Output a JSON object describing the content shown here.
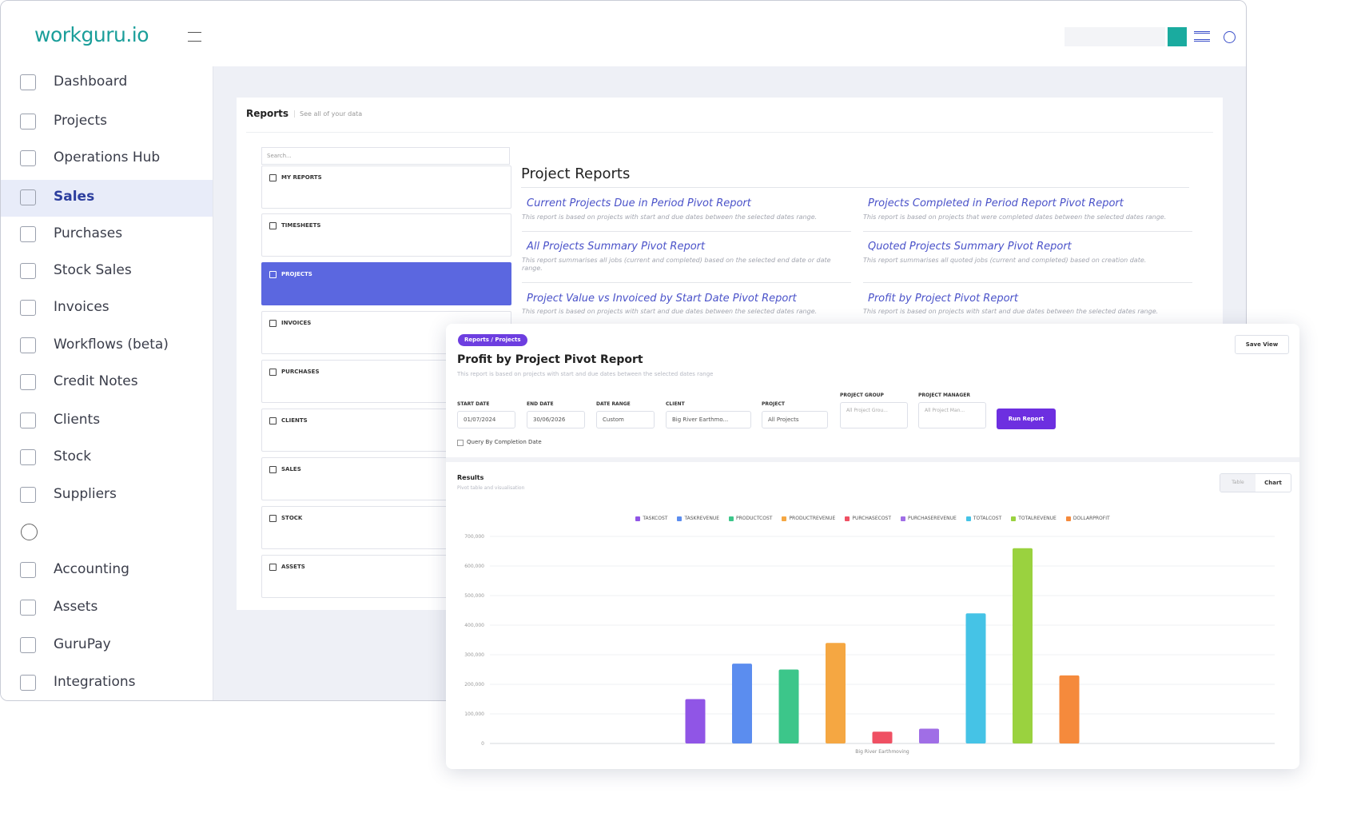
{
  "header": {
    "logo": "workguru.io"
  },
  "sidebar": {
    "items": [
      "Dashboard",
      "Projects",
      "Operations Hub",
      "Sales",
      "Purchases",
      "Stock Sales",
      "Invoices",
      "Workflows (beta)",
      "Credit Notes",
      "Clients",
      "Stock",
      "Suppliers",
      "Accounting",
      "Assets",
      "GuruPay",
      "Integrations"
    ]
  },
  "reports": {
    "title": "Reports",
    "subtitle": "See all of your data",
    "search_placeholder": "Search...",
    "categories": [
      "MY REPORTS",
      "TIMESHEETS",
      "PROJECTS",
      "INVOICES",
      "PURCHASES",
      "CLIENTS",
      "SALES",
      "STOCK",
      "ASSETS"
    ],
    "section_title": "Project Reports",
    "items": [
      {
        "title": "Current Projects Due in Period Pivot Report",
        "description": "This report is based on projects with start and due dates between the selected dates range."
      },
      {
        "title": "Projects Completed in Period Report Pivot Report",
        "description": "This report is based on projects that were completed dates between the selected dates range."
      },
      {
        "title": "All Projects Summary Pivot Report",
        "description": "This report summarises all jobs (current and completed) based on the selected end date or date range."
      },
      {
        "title": "Quoted Projects Summary Pivot Report",
        "description": "This report summarises all quoted jobs (current and completed) based on creation date."
      },
      {
        "title": "Project Value vs Invoiced by Start Date Pivot Report",
        "description": "This report is based on projects with start and due dates between the selected dates range."
      },
      {
        "title": "Profit by Project Pivot Report",
        "description": "This report is based on projects with start and due dates between the selected dates range."
      }
    ]
  },
  "report_view": {
    "breadcrumb": "Reports / Projects",
    "title": "Profit by Project Pivot Report",
    "description": "This report is based on projects with start and due dates between the selected dates range",
    "save_button": "Save View",
    "filters": [
      {
        "label": "START DATE",
        "value": "01/07/2024"
      },
      {
        "label": "END DATE",
        "value": "30/06/2026"
      },
      {
        "label": "DATE RANGE",
        "value": "Custom"
      },
      {
        "label": "CLIENT",
        "value": "Big River Earthmo..."
      },
      {
        "label": "PROJECT",
        "value": "All Projects"
      },
      {
        "label": "PROJECT GROUP",
        "value": "All Project Grou..."
      },
      {
        "label": "PROJECT MANAGER",
        "value": "All Project Man..."
      }
    ],
    "run_button": "Run Report",
    "checkbox_label": "Query By Completion Date",
    "results_title": "Results",
    "results_subtitle": "Pivot table and visualisation",
    "view_toggle": [
      "Table",
      "Chart"
    ]
  },
  "chart_data": {
    "type": "bar",
    "categories": [
      "Big River Earthmoving"
    ],
    "series": [
      {
        "name": "TASKCOST",
        "color": "#9055e6",
        "values": [
          150000
        ]
      },
      {
        "name": "TASKREVENUE",
        "color": "#5b8def",
        "values": [
          270000
        ]
      },
      {
        "name": "PRODUCTCOST",
        "color": "#3cc68a",
        "values": [
          250000
        ]
      },
      {
        "name": "PRODUCTREVENUE",
        "color": "#f5a742",
        "values": [
          340000
        ]
      },
      {
        "name": "PURCHASECOST",
        "color": "#ef5063",
        "values": [
          40000
        ]
      },
      {
        "name": "PURCHASEREVENUE",
        "color": "#a06ee6",
        "values": [
          50000
        ]
      },
      {
        "name": "TOTALCOST",
        "color": "#45c3e6",
        "values": [
          440000
        ]
      },
      {
        "name": "TOTALREVENUE",
        "color": "#9ad23f",
        "values": [
          660000
        ]
      },
      {
        "name": "DOLLARPROFIT",
        "color": "#f58a3c",
        "values": [
          230000
        ]
      }
    ],
    "ylim": [
      0,
      700000
    ],
    "yticks": [
      0,
      {
        "value": 100000,
        "label": "100,000"
      },
      {
        "value": 200000,
        "label": "200,000"
      },
      {
        "value": 300000,
        "label": "300,000"
      },
      {
        "value": 400000,
        "label": "400,000"
      },
      {
        "value": 500000,
        "label": "500,000"
      },
      {
        "value": 600000,
        "label": "600,000"
      },
      {
        "value": 700000,
        "label": "700,000"
      }
    ],
    "grid": true
  }
}
